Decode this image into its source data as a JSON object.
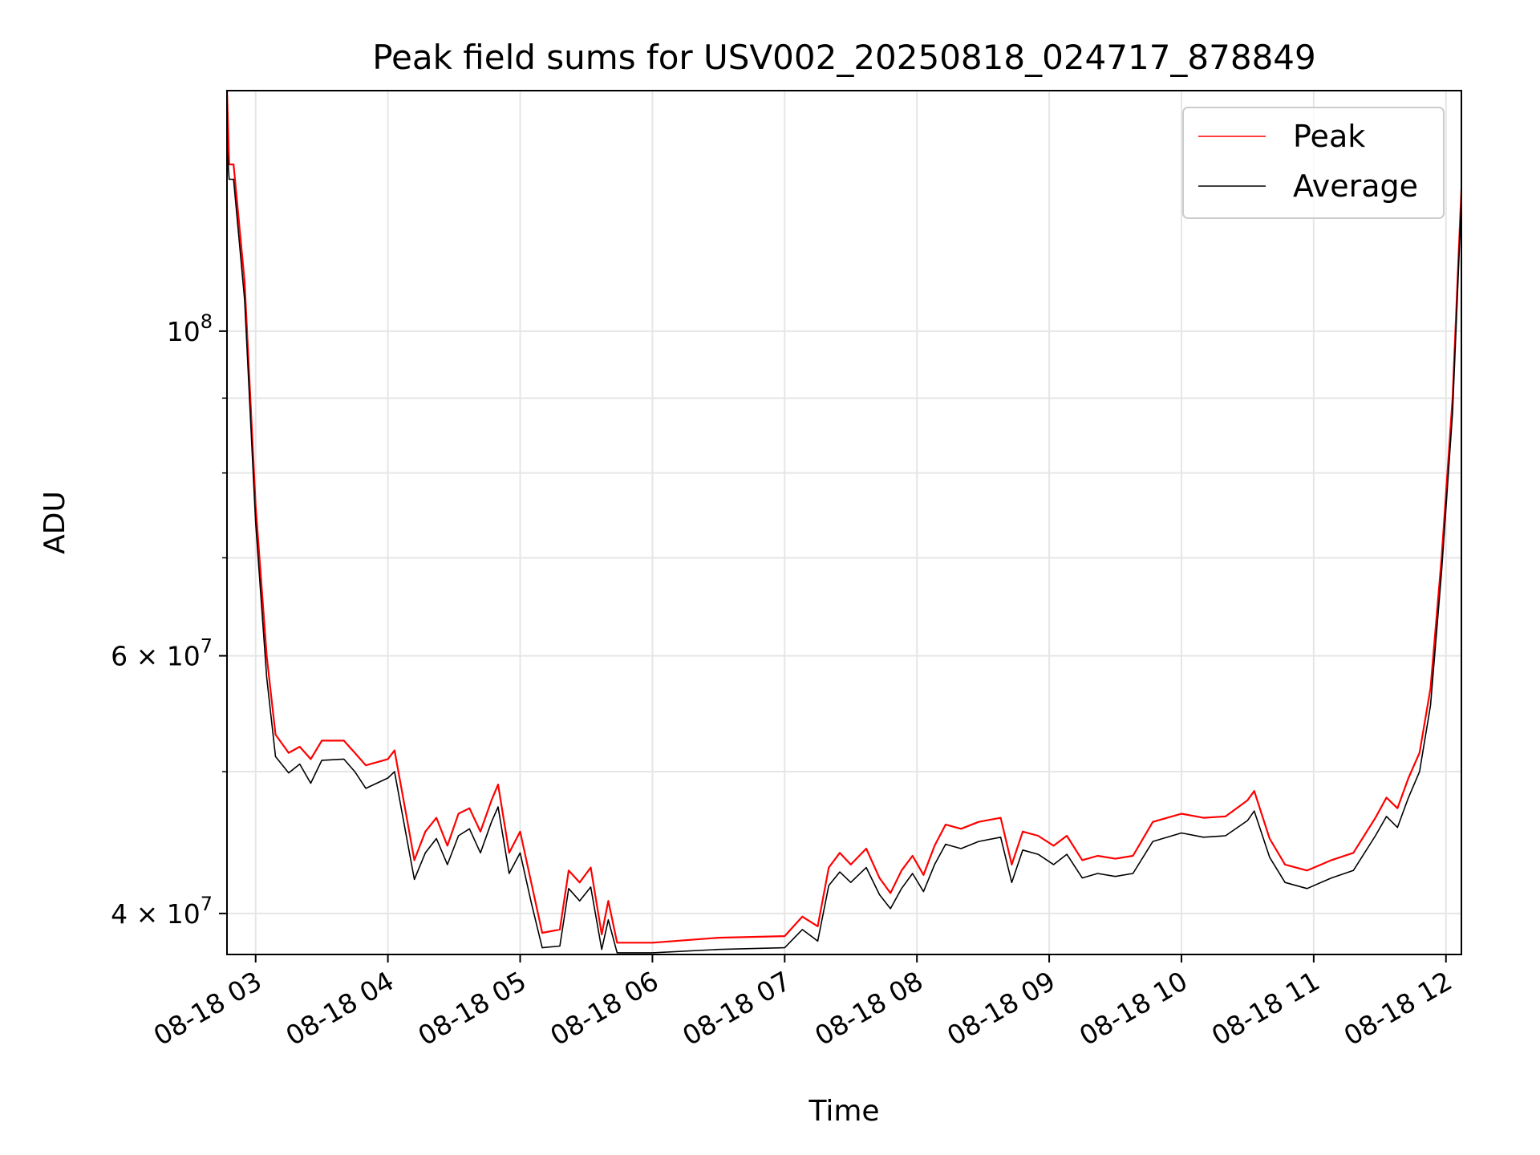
{
  "chart_data": {
    "type": "line",
    "title": "Peak field sums for USV002_20250818_024717_878849",
    "xlabel": "Time",
    "ylabel": "ADU",
    "x_tick_labels": [
      "08-18 03",
      "08-18 04",
      "08-18 05",
      "08-18 06",
      "08-18 07",
      "08-18 08",
      "08-18 09",
      "08-18 10",
      "08-18 11",
      "08-18 12"
    ],
    "y_scale": "log",
    "y_tick_labels": [
      {
        "value": 40000000,
        "mantissa": "4",
        "exponent": "7"
      },
      {
        "value": 60000000,
        "mantissa": "6",
        "exponent": "7"
      },
      {
        "value": 100000000,
        "mantissa": "10",
        "exponent": "8"
      }
    ],
    "y_minor_ticks": [
      50000000,
      70000000,
      80000000,
      90000000
    ],
    "x_range": [
      "2025-08-18 02:47",
      "2025-08-18 12:07"
    ],
    "ylim": [
      37500000,
      146000000
    ],
    "grid": true,
    "legend": {
      "placement": "top-right",
      "entries": [
        "Peak",
        "Average"
      ]
    },
    "colors": {
      "Peak": "#ff0000",
      "Average": "#000000"
    },
    "series": [
      {
        "name": "Peak",
        "points": [
          [
            "2025-08-18 02:47",
            146000000
          ],
          [
            "2025-08-18 02:48",
            130000000
          ],
          [
            "2025-08-18 02:50",
            130000000
          ],
          [
            "2025-08-18 02:55",
            108000000
          ],
          [
            "2025-08-18 03:00",
            76000000
          ],
          [
            "2025-08-18 03:05",
            60000000
          ],
          [
            "2025-08-18 03:09",
            53000000
          ],
          [
            "2025-08-18 03:15",
            51500000
          ],
          [
            "2025-08-18 03:20",
            52000000
          ],
          [
            "2025-08-18 03:25",
            51000000
          ],
          [
            "2025-08-18 03:30",
            52500000
          ],
          [
            "2025-08-18 03:40",
            52500000
          ],
          [
            "2025-08-18 03:45",
            51500000
          ],
          [
            "2025-08-18 03:50",
            50500000
          ],
          [
            "2025-08-18 04:00",
            51000000
          ],
          [
            "2025-08-18 04:03",
            51700000
          ],
          [
            "2025-08-18 04:08",
            47000000
          ],
          [
            "2025-08-18 04:12",
            43500000
          ],
          [
            "2025-08-18 04:17",
            45500000
          ],
          [
            "2025-08-18 04:22",
            46500000
          ],
          [
            "2025-08-18 04:27",
            44500000
          ],
          [
            "2025-08-18 04:32",
            46800000
          ],
          [
            "2025-08-18 04:37",
            47200000
          ],
          [
            "2025-08-18 04:42",
            45500000
          ],
          [
            "2025-08-18 04:47",
            47800000
          ],
          [
            "2025-08-18 04:50",
            49000000
          ],
          [
            "2025-08-18 04:55",
            44000000
          ],
          [
            "2025-08-18 05:00",
            45500000
          ],
          [
            "2025-08-18 05:05",
            42000000
          ],
          [
            "2025-08-18 05:10",
            38800000
          ],
          [
            "2025-08-18 05:18",
            39000000
          ],
          [
            "2025-08-18 05:22",
            42800000
          ],
          [
            "2025-08-18 05:27",
            42000000
          ],
          [
            "2025-08-18 05:32",
            43000000
          ],
          [
            "2025-08-18 05:37",
            38700000
          ],
          [
            "2025-08-18 05:40",
            40800000
          ],
          [
            "2025-08-18 05:44",
            38200000
          ],
          [
            "2025-08-18 06:00",
            38200000
          ],
          [
            "2025-08-18 06:30",
            38500000
          ],
          [
            "2025-08-18 07:00",
            38600000
          ],
          [
            "2025-08-18 07:08",
            39800000
          ],
          [
            "2025-08-18 07:15",
            39200000
          ],
          [
            "2025-08-18 07:20",
            43000000
          ],
          [
            "2025-08-18 07:25",
            44000000
          ],
          [
            "2025-08-18 07:30",
            43200000
          ],
          [
            "2025-08-18 07:37",
            44300000
          ],
          [
            "2025-08-18 07:43",
            42300000
          ],
          [
            "2025-08-18 07:48",
            41300000
          ],
          [
            "2025-08-18 07:53",
            42800000
          ],
          [
            "2025-08-18 07:58",
            43800000
          ],
          [
            "2025-08-18 08:03",
            42500000
          ],
          [
            "2025-08-18 08:08",
            44500000
          ],
          [
            "2025-08-18 08:13",
            46000000
          ],
          [
            "2025-08-18 08:20",
            45700000
          ],
          [
            "2025-08-18 08:28",
            46200000
          ],
          [
            "2025-08-18 08:38",
            46500000
          ],
          [
            "2025-08-18 08:43",
            43200000
          ],
          [
            "2025-08-18 08:48",
            45500000
          ],
          [
            "2025-08-18 08:55",
            45200000
          ],
          [
            "2025-08-18 09:02",
            44500000
          ],
          [
            "2025-08-18 09:08",
            45200000
          ],
          [
            "2025-08-18 09:15",
            43500000
          ],
          [
            "2025-08-18 09:22",
            43800000
          ],
          [
            "2025-08-18 09:30",
            43600000
          ],
          [
            "2025-08-18 09:38",
            43800000
          ],
          [
            "2025-08-18 09:47",
            46200000
          ],
          [
            "2025-08-18 10:00",
            46800000
          ],
          [
            "2025-08-18 10:10",
            46500000
          ],
          [
            "2025-08-18 10:20",
            46600000
          ],
          [
            "2025-08-18 10:30",
            47800000
          ],
          [
            "2025-08-18 10:33",
            48500000
          ],
          [
            "2025-08-18 10:40",
            45000000
          ],
          [
            "2025-08-18 10:47",
            43200000
          ],
          [
            "2025-08-18 10:57",
            42800000
          ],
          [
            "2025-08-18 11:08",
            43500000
          ],
          [
            "2025-08-18 11:18",
            44000000
          ],
          [
            "2025-08-18 11:28",
            46500000
          ],
          [
            "2025-08-18 11:33",
            48000000
          ],
          [
            "2025-08-18 11:38",
            47200000
          ],
          [
            "2025-08-18 11:43",
            49500000
          ],
          [
            "2025-08-18 11:48",
            51500000
          ],
          [
            "2025-08-18 11:53",
            57000000
          ],
          [
            "2025-08-18 11:58",
            70000000
          ],
          [
            "2025-08-18 12:03",
            90000000
          ],
          [
            "2025-08-18 12:07",
            125000000
          ]
        ]
      },
      {
        "name": "Average",
        "points": [
          [
            "2025-08-18 02:47",
            134000000
          ],
          [
            "2025-08-18 02:48",
            127000000
          ],
          [
            "2025-08-18 02:50",
            127000000
          ],
          [
            "2025-08-18 02:55",
            105000000
          ],
          [
            "2025-08-18 03:00",
            74000000
          ],
          [
            "2025-08-18 03:05",
            58000000
          ],
          [
            "2025-08-18 03:09",
            51200000
          ],
          [
            "2025-08-18 03:15",
            49900000
          ],
          [
            "2025-08-18 03:20",
            50600000
          ],
          [
            "2025-08-18 03:25",
            49100000
          ],
          [
            "2025-08-18 03:30",
            50900000
          ],
          [
            "2025-08-18 03:40",
            51000000
          ],
          [
            "2025-08-18 03:45",
            50000000
          ],
          [
            "2025-08-18 03:50",
            48700000
          ],
          [
            "2025-08-18 04:00",
            49500000
          ],
          [
            "2025-08-18 04:03",
            50000000
          ],
          [
            "2025-08-18 04:08",
            45500000
          ],
          [
            "2025-08-18 04:12",
            42200000
          ],
          [
            "2025-08-18 04:17",
            44000000
          ],
          [
            "2025-08-18 04:22",
            45000000
          ],
          [
            "2025-08-18 04:27",
            43200000
          ],
          [
            "2025-08-18 04:32",
            45200000
          ],
          [
            "2025-08-18 04:37",
            45700000
          ],
          [
            "2025-08-18 04:42",
            44000000
          ],
          [
            "2025-08-18 04:47",
            46200000
          ],
          [
            "2025-08-18 04:50",
            47300000
          ],
          [
            "2025-08-18 04:55",
            42600000
          ],
          [
            "2025-08-18 05:00",
            44000000
          ],
          [
            "2025-08-18 05:05",
            40700000
          ],
          [
            "2025-08-18 05:10",
            37900000
          ],
          [
            "2025-08-18 05:18",
            38000000
          ],
          [
            "2025-08-18 05:22",
            41600000
          ],
          [
            "2025-08-18 05:27",
            40800000
          ],
          [
            "2025-08-18 05:32",
            41700000
          ],
          [
            "2025-08-18 05:37",
            37800000
          ],
          [
            "2025-08-18 05:40",
            39600000
          ],
          [
            "2025-08-18 05:44",
            37600000
          ],
          [
            "2025-08-18 06:00",
            37600000
          ],
          [
            "2025-08-18 06:30",
            37800000
          ],
          [
            "2025-08-18 07:00",
            37900000
          ],
          [
            "2025-08-18 07:08",
            39000000
          ],
          [
            "2025-08-18 07:15",
            38300000
          ],
          [
            "2025-08-18 07:20",
            41800000
          ],
          [
            "2025-08-18 07:25",
            42700000
          ],
          [
            "2025-08-18 07:30",
            42000000
          ],
          [
            "2025-08-18 07:37",
            43000000
          ],
          [
            "2025-08-18 07:43",
            41200000
          ],
          [
            "2025-08-18 07:48",
            40300000
          ],
          [
            "2025-08-18 07:53",
            41600000
          ],
          [
            "2025-08-18 07:58",
            42600000
          ],
          [
            "2025-08-18 08:03",
            41400000
          ],
          [
            "2025-08-18 08:08",
            43200000
          ],
          [
            "2025-08-18 08:13",
            44600000
          ],
          [
            "2025-08-18 08:20",
            44300000
          ],
          [
            "2025-08-18 08:28",
            44800000
          ],
          [
            "2025-08-18 08:38",
            45100000
          ],
          [
            "2025-08-18 08:43",
            42000000
          ],
          [
            "2025-08-18 08:48",
            44200000
          ],
          [
            "2025-08-18 08:55",
            43900000
          ],
          [
            "2025-08-18 09:02",
            43200000
          ],
          [
            "2025-08-18 09:08",
            43900000
          ],
          [
            "2025-08-18 09:15",
            42300000
          ],
          [
            "2025-08-18 09:22",
            42600000
          ],
          [
            "2025-08-18 09:30",
            42400000
          ],
          [
            "2025-08-18 09:38",
            42600000
          ],
          [
            "2025-08-18 09:47",
            44800000
          ],
          [
            "2025-08-18 10:00",
            45400000
          ],
          [
            "2025-08-18 10:10",
            45100000
          ],
          [
            "2025-08-18 10:20",
            45200000
          ],
          [
            "2025-08-18 10:30",
            46300000
          ],
          [
            "2025-08-18 10:33",
            47000000
          ],
          [
            "2025-08-18 10:40",
            43700000
          ],
          [
            "2025-08-18 10:47",
            42000000
          ],
          [
            "2025-08-18 10:57",
            41600000
          ],
          [
            "2025-08-18 11:08",
            42300000
          ],
          [
            "2025-08-18 11:18",
            42800000
          ],
          [
            "2025-08-18 11:28",
            45200000
          ],
          [
            "2025-08-18 11:33",
            46600000
          ],
          [
            "2025-08-18 11:38",
            45800000
          ],
          [
            "2025-08-18 11:43",
            48000000
          ],
          [
            "2025-08-18 11:48",
            50000000
          ],
          [
            "2025-08-18 11:53",
            55500000
          ],
          [
            "2025-08-18 11:58",
            68500000
          ],
          [
            "2025-08-18 12:03",
            88000000
          ],
          [
            "2025-08-18 12:07",
            123000000
          ]
        ]
      }
    ]
  }
}
